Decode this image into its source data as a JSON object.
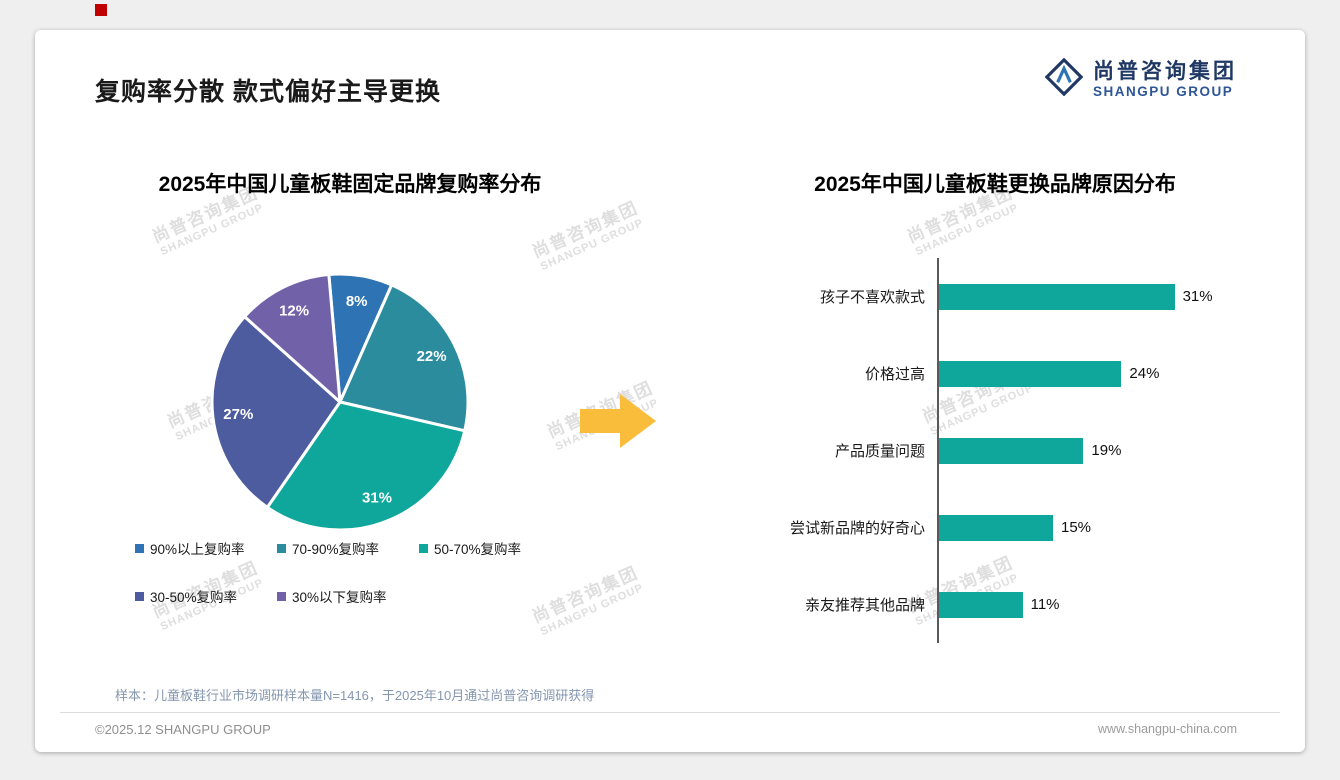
{
  "page": {
    "title": "复购率分散 款式偏好主导更换",
    "logo": {
      "name": "尚普咨询集团",
      "subtitle": "SHANGPU GROUP"
    },
    "watermark": {
      "line1": "尚普咨询集团",
      "line2": "SHANGPU GROUP"
    },
    "sample_note": "样本：儿童板鞋行业市场调研样本量N=1416，于2025年10月通过尚普咨询调研获得",
    "footer_left": "©2025.12 SHANGPU GROUP",
    "footer_right": "www.shangpu-china.com"
  },
  "colors": {
    "accent_red": "#C00000",
    "logo_navy": "#1F3864",
    "arrow_gold": "#FABD3B",
    "bar_teal": "#0FA79B"
  },
  "chart_data": [
    {
      "type": "pie",
      "title": "2025年中国儿童板鞋固定品牌复购率分布",
      "labels": [
        "90%以上复购率",
        "70-90%复购率",
        "50-70%复购率",
        "30-50%复购率",
        "30%以下复购率"
      ],
      "values": [
        8,
        22,
        31,
        27,
        12
      ],
      "colors": [
        "#2E74B5",
        "#2B8C9E",
        "#0FA79B",
        "#4D5C9F",
        "#7161A9"
      ],
      "start_angle_deg": -5,
      "value_label_format": "percent",
      "legend_position": "bottom"
    },
    {
      "type": "bar",
      "orientation": "horizontal",
      "title": "2025年中国儿童板鞋更换品牌原因分布",
      "categories": [
        "孩子不喜欢款式",
        "价格过高",
        "产品质量问题",
        "尝试新品牌的好奇心",
        "亲友推荐其他品牌"
      ],
      "values": [
        31,
        24,
        19,
        15,
        11
      ],
      "bar_color": "#0FA79B",
      "value_suffix": "%",
      "xlim": [
        0,
        35
      ],
      "grid": false
    }
  ]
}
